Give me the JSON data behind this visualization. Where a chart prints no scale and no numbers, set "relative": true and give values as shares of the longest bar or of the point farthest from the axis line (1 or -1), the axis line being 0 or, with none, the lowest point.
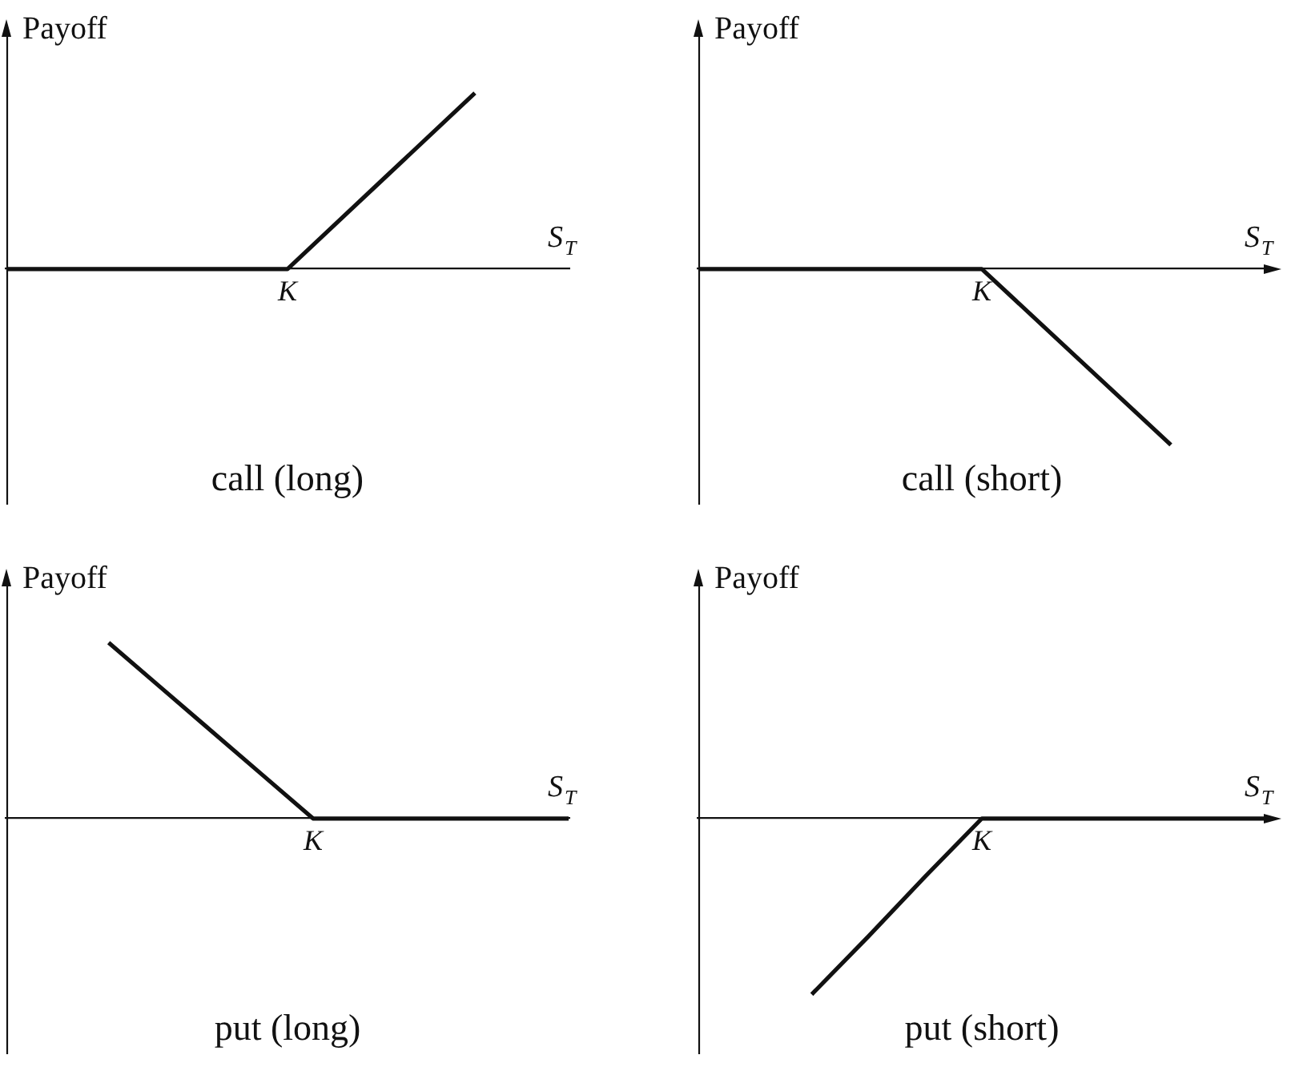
{
  "chart_data": [
    {
      "type": "line",
      "title": "call (long)",
      "xlabel": "S$_{T}$",
      "ylabel": "Payoff",
      "categories": [
        null,
        null,
        null,
        null,
        null,
        null,
        null
      ],
      "values": [
        0,
        0,
        0,
        0,
        0.5,
        1,
        null
      ],
      "color": "#111111",
      "relative": true,
      "marker": "none",
      "annotations": [
        {
          "text": "K",
          "y": 0
        }
      ]
    },
    {
      "type": "line",
      "title": "call (short)",
      "xlabel": "S$_{T}$",
      "ylabel": "Payoff",
      "categories": [
        null,
        null,
        null,
        null,
        null,
        null,
        null
      ],
      "values": [
        0,
        0,
        0,
        0,
        -0.5,
        -1,
        null
      ],
      "color": "#111111",
      "relative": true,
      "marker": "none",
      "annotations": [
        {
          "text": "K",
          "y": 0
        }
      ]
    },
    {
      "type": "line",
      "title": "put (long)",
      "xlabel": "S$_{T}$",
      "ylabel": "Payoff",
      "categories": [
        null,
        null,
        null,
        null,
        null,
        null,
        null,
        null,
        null,
        null,
        null,
        null
      ],
      "values": [
        null,
        null,
        1,
        0.75,
        0.5,
        0.25,
        0,
        0,
        0,
        0,
        0,
        0
      ],
      "color": "#111111",
      "relative": true,
      "marker": "none",
      "annotations": [
        {
          "text": "K",
          "y": 0
        }
      ]
    },
    {
      "type": "line",
      "title": "put (short)",
      "xlabel": "S$_{T}$",
      "ylabel": "Payoff",
      "categories": [
        null,
        null,
        null,
        null,
        null,
        null,
        null,
        null,
        null,
        null,
        null
      ],
      "values": [
        null,
        null,
        -1,
        -0.67,
        -0.33,
        0,
        0,
        0,
        0,
        0,
        0
      ],
      "color": "#111111",
      "relative": true,
      "marker": "none",
      "annotations": [
        {
          "text": "K",
          "y": 0
        }
      ]
    }
  ]
}
